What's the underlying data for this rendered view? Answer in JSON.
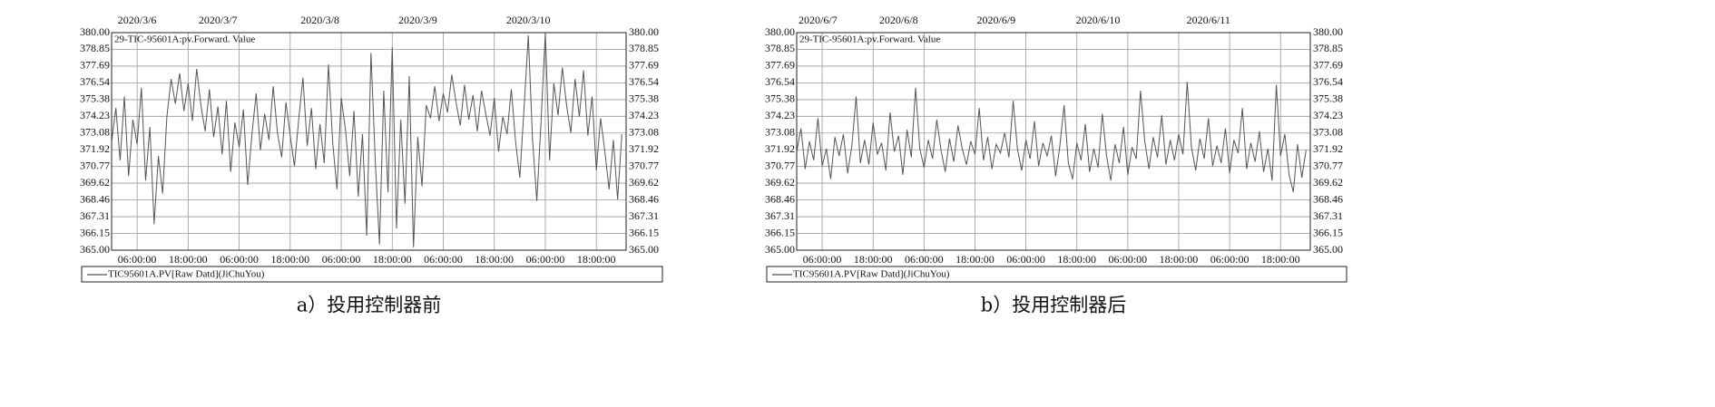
{
  "chart_data": [
    {
      "type": "line",
      "caption": "a）投用控制器前",
      "annotation": "29-TIC-95601A:pv.Forward. Value",
      "x": [
        0,
        1,
        2,
        3,
        4,
        5,
        6,
        7,
        8,
        9,
        10,
        11,
        12,
        13,
        14,
        15,
        16,
        17,
        18,
        19,
        20,
        21,
        22,
        23,
        24,
        25,
        26,
        27,
        28,
        29,
        30,
        31,
        32,
        33,
        34,
        35,
        36,
        37,
        38,
        39,
        40,
        41,
        42,
        43,
        44,
        45,
        46,
        47,
        48,
        49,
        50,
        51,
        52,
        53,
        54,
        55,
        56,
        57,
        58,
        59,
        60,
        61,
        62,
        63,
        64,
        65,
        66,
        67,
        68,
        69,
        70,
        71,
        72,
        73,
        74,
        75,
        76,
        77,
        78,
        79,
        80,
        81,
        82,
        83,
        84,
        85,
        86,
        87,
        88,
        89,
        90,
        91,
        92,
        93,
        94,
        95,
        96,
        97,
        98,
        99,
        100,
        101,
        102,
        103,
        104,
        105,
        106,
        107,
        108,
        109,
        110,
        111,
        112,
        113,
        114,
        115,
        116,
        117,
        118,
        119,
        120
      ],
      "series": [
        {
          "name": "TIC95601A.PV[Raw Datd](JiChuYou)",
          "color": "#555555",
          "values": [
            372.5,
            374.8,
            371.2,
            375.6,
            370.1,
            374.0,
            372.3,
            376.2,
            369.8,
            373.5,
            366.8,
            371.5,
            368.9,
            374.2,
            376.8,
            375.1,
            377.2,
            374.6,
            376.5,
            373.9,
            377.5,
            375.0,
            373.2,
            376.1,
            372.8,
            374.9,
            371.6,
            375.3,
            370.4,
            373.8,
            372.1,
            374.7,
            369.5,
            373.0,
            375.8,
            371.9,
            374.4,
            372.6,
            376.3,
            373.1,
            371.4,
            375.2,
            372.9,
            370.8,
            374.0,
            376.9,
            372.2,
            374.8,
            370.6,
            373.7,
            371.0,
            377.8,
            372.4,
            369.2,
            375.5,
            373.3,
            370.1,
            374.6,
            368.7,
            373.0,
            366.0,
            378.6,
            371.2,
            365.4,
            376.0,
            369.0,
            379.0,
            366.5,
            374.0,
            368.2,
            377.0,
            365.2,
            372.8,
            369.4,
            375.0,
            374.1,
            376.3,
            373.9,
            375.8,
            374.5,
            377.1,
            375.2,
            373.6,
            376.4,
            374.0,
            375.7,
            373.2,
            376.0,
            374.4,
            372.9,
            375.5,
            371.8,
            374.2,
            373.0,
            376.1,
            372.5,
            370.0,
            374.8,
            379.8,
            372.6,
            368.4,
            373.9,
            380.0,
            371.2,
            376.5,
            374.3,
            377.6,
            375.0,
            373.1,
            376.8,
            374.2,
            377.4,
            372.9,
            375.6,
            370.5,
            374.1,
            371.8,
            369.2,
            372.6,
            368.5,
            373.0
          ]
        }
      ],
      "xlim": [
        0,
        121
      ],
      "ylim": [
        365,
        380
      ],
      "yticks": [
        {
          "value": 365,
          "label": "365.00"
        },
        366.15,
        367.31,
        368.46,
        369.62,
        370.77,
        371.92,
        373.08,
        374.23,
        375.38,
        376.54,
        377.69,
        378.85,
        {
          "value": 380,
          "label": "380.00"
        }
      ],
      "xticks": [
        {
          "value": 6,
          "label": "06:00:00"
        },
        {
          "value": 18,
          "label": "18:00:00"
        },
        {
          "value": 30,
          "label": "06:00:00"
        },
        {
          "value": 42,
          "label": "18:00:00"
        },
        {
          "value": 54,
          "label": "06:00:00"
        },
        {
          "value": 66,
          "label": "18:00:00"
        },
        {
          "value": 78,
          "label": "06:00:00"
        },
        {
          "value": 90,
          "label": "18:00:00"
        },
        {
          "value": 102,
          "label": "06:00:00"
        },
        {
          "value": 114,
          "label": "18:00:00"
        }
      ],
      "top_xticks": [
        {
          "value": 6,
          "label": "2020/3/6"
        },
        {
          "value": 25,
          "label": "2020/3/7"
        },
        {
          "value": 49,
          "label": "2020/3/8"
        },
        {
          "value": 72,
          "label": "2020/3/9"
        },
        {
          "value": 98,
          "label": "2020/3/10"
        }
      ],
      "grid": true,
      "mirror_y_axis": true
    },
    {
      "type": "line",
      "caption": "b）投用控制器后",
      "annotation": "29-TIC-95601A:pv.Forward. Value",
      "x": [
        0,
        1,
        2,
        3,
        4,
        5,
        6,
        7,
        8,
        9,
        10,
        11,
        12,
        13,
        14,
        15,
        16,
        17,
        18,
        19,
        20,
        21,
        22,
        23,
        24,
        25,
        26,
        27,
        28,
        29,
        30,
        31,
        32,
        33,
        34,
        35,
        36,
        37,
        38,
        39,
        40,
        41,
        42,
        43,
        44,
        45,
        46,
        47,
        48,
        49,
        50,
        51,
        52,
        53,
        54,
        55,
        56,
        57,
        58,
        59,
        60,
        61,
        62,
        63,
        64,
        65,
        66,
        67,
        68,
        69,
        70,
        71,
        72,
        73,
        74,
        75,
        76,
        77,
        78,
        79,
        80,
        81,
        82,
        83,
        84,
        85,
        86,
        87,
        88,
        89,
        90,
        91,
        92,
        93,
        94,
        95,
        96,
        97,
        98,
        99,
        100,
        101,
        102,
        103,
        104,
        105,
        106,
        107,
        108,
        109,
        110,
        111,
        112,
        113,
        114,
        115,
        116,
        117,
        118,
        119,
        120
      ],
      "series": [
        {
          "name": "TIC95601A.PV[Raw Datd](JiChuYou)",
          "color": "#555555",
          "values": [
            371.8,
            373.4,
            370.6,
            372.5,
            371.2,
            374.1,
            370.8,
            372.0,
            369.9,
            372.8,
            371.5,
            373.0,
            370.3,
            372.2,
            375.6,
            371.0,
            372.6,
            370.9,
            373.8,
            371.6,
            372.4,
            370.5,
            374.5,
            371.8,
            372.9,
            370.2,
            373.3,
            371.4,
            376.2,
            372.0,
            370.7,
            372.6,
            371.3,
            374.0,
            371.9,
            370.4,
            372.7,
            371.1,
            373.6,
            372.0,
            370.9,
            372.5,
            371.6,
            374.8,
            371.2,
            372.8,
            370.6,
            372.3,
            371.7,
            373.1,
            371.4,
            375.3,
            372.0,
            370.5,
            372.6,
            371.3,
            373.9,
            370.8,
            372.4,
            371.5,
            372.9,
            370.1,
            372.2,
            375.0,
            371.0,
            369.9,
            372.4,
            371.2,
            373.7,
            370.4,
            372.0,
            370.7,
            374.4,
            371.5,
            369.8,
            372.3,
            371.0,
            373.5,
            370.2,
            372.1,
            371.3,
            376.0,
            372.5,
            370.6,
            372.8,
            371.4,
            374.3,
            370.9,
            372.6,
            371.2,
            373.0,
            371.6,
            376.6,
            372.1,
            370.5,
            372.7,
            371.3,
            374.1,
            370.8,
            372.2,
            371.0,
            373.4,
            370.3,
            372.6,
            371.7,
            374.8,
            370.6,
            372.4,
            371.1,
            373.2,
            370.4,
            372.0,
            369.8,
            376.4,
            371.5,
            373.0,
            370.2,
            369.0,
            372.3,
            370.0,
            371.9
          ]
        }
      ],
      "xlim": [
        0,
        121
      ],
      "ylim": [
        365,
        380
      ],
      "yticks": [
        {
          "value": 365,
          "label": "365.00"
        },
        366.15,
        367.31,
        368.46,
        369.62,
        370.77,
        371.92,
        373.08,
        374.23,
        375.38,
        376.54,
        377.69,
        378.85,
        {
          "value": 380,
          "label": "380.00"
        }
      ],
      "xticks": [
        {
          "value": 6,
          "label": "06:00:00"
        },
        {
          "value": 18,
          "label": "18:00:00"
        },
        {
          "value": 30,
          "label": "06:00:00"
        },
        {
          "value": 42,
          "label": "18:00:00"
        },
        {
          "value": 54,
          "label": "06:00:00"
        },
        {
          "value": 66,
          "label": "18:00:00"
        },
        {
          "value": 78,
          "label": "06:00:00"
        },
        {
          "value": 90,
          "label": "18:00:00"
        },
        {
          "value": 102,
          "label": "06:00:00"
        },
        {
          "value": 114,
          "label": "18:00:00"
        }
      ],
      "top_xticks": [
        {
          "value": 5,
          "label": "2020/6/7"
        },
        {
          "value": 24,
          "label": "2020/6/8"
        },
        {
          "value": 47,
          "label": "2020/6/9"
        },
        {
          "value": 71,
          "label": "2020/6/10"
        },
        {
          "value": 97,
          "label": "2020/6/11"
        }
      ],
      "grid": true,
      "mirror_y_axis": true
    }
  ]
}
